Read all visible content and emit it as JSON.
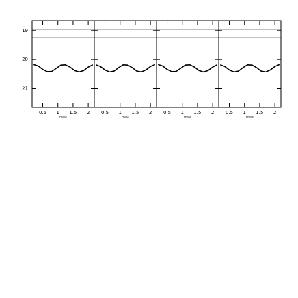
{
  "chart_data": [
    {
      "type": "line",
      "x_label": "PHASE",
      "x": [
        0.2,
        0.35,
        0.5,
        0.65,
        0.8,
        0.95,
        1.1,
        1.25,
        1.4,
        1.55,
        1.7,
        1.85,
        2.0,
        2.15
      ],
      "series": [
        {
          "color": "#000000",
          "values": [
            20.17,
            20.22,
            20.34,
            20.42,
            20.41,
            20.3,
            20.19,
            20.18,
            20.26,
            20.38,
            20.43,
            20.38,
            20.26,
            20.18
          ]
        }
      ],
      "xlim": [
        0.15,
        2.2
      ],
      "ylim": [
        21.65,
        18.65
      ],
      "xticks": [
        0.5,
        1,
        1.5,
        2
      ],
      "yticks": [
        19,
        20,
        21
      ]
    },
    {
      "type": "line",
      "x_label": "PHASE",
      "x": [
        0.2,
        0.35,
        0.5,
        0.65,
        0.8,
        0.95,
        1.1,
        1.25,
        1.4,
        1.55,
        1.7,
        1.85,
        2.0,
        2.15
      ],
      "series": [
        {
          "color": "#000000",
          "values": [
            20.18,
            20.24,
            20.36,
            20.43,
            20.4,
            20.28,
            20.18,
            20.19,
            20.28,
            20.4,
            20.43,
            20.36,
            20.24,
            20.17
          ]
        }
      ],
      "xlim": [
        0.15,
        2.2
      ],
      "ylim": [
        21.65,
        18.65
      ],
      "xticks": [
        0.5,
        1,
        1.5,
        2
      ],
      "yticks": [
        19,
        20,
        21
      ]
    },
    {
      "type": "line",
      "x_label": "PHASE",
      "x": [
        0.2,
        0.35,
        0.5,
        0.65,
        0.8,
        0.95,
        1.1,
        1.25,
        1.4,
        1.55,
        1.7,
        1.85,
        2.0,
        2.15
      ],
      "series": [
        {
          "color": "#000000",
          "values": [
            20.17,
            20.22,
            20.34,
            20.42,
            20.41,
            20.3,
            20.19,
            20.18,
            20.26,
            20.38,
            20.43,
            20.38,
            20.26,
            20.18
          ]
        }
      ],
      "xlim": [
        0.15,
        2.2
      ],
      "ylim": [
        21.65,
        18.65
      ],
      "xticks": [
        0.5,
        1,
        1.5,
        2
      ],
      "yticks": [
        19,
        20,
        21
      ]
    },
    {
      "type": "line",
      "x_label": "PHASE",
      "x": [
        0.2,
        0.35,
        0.5,
        0.65,
        0.8,
        0.95,
        1.1,
        1.25,
        1.4,
        1.55,
        1.7,
        1.85,
        2.0,
        2.15
      ],
      "series": [
        {
          "color": "#000000",
          "values": [
            20.18,
            20.24,
            20.36,
            20.43,
            20.4,
            20.28,
            20.18,
            20.19,
            20.28,
            20.4,
            20.43,
            20.36,
            20.24,
            20.17
          ]
        }
      ],
      "xlim": [
        0.15,
        2.2
      ],
      "ylim": [
        21.65,
        18.65
      ],
      "xticks": [
        0.5,
        1,
        1.5,
        2
      ],
      "yticks": [
        19,
        20,
        21
      ]
    }
  ]
}
